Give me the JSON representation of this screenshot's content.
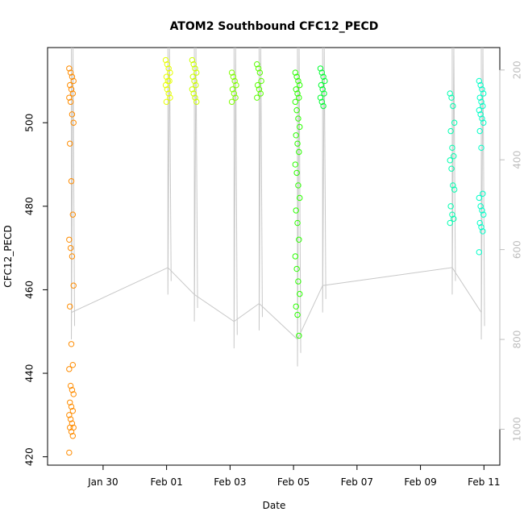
{
  "chart_data": {
    "type": "scatter",
    "title": "ATOM2 Southbound CFC12_PECD",
    "xlabel": "Date",
    "ylabel": "CFC12_PECD",
    "xlim": [
      "2017-01-28T06:00",
      "2017-02-11T12:00"
    ],
    "ylim": [
      418,
      518
    ],
    "y_ticks": [
      420,
      440,
      460,
      480,
      500
    ],
    "x_ticks": [
      {
        "date": "2017-01-30",
        "label": "Jan 30"
      },
      {
        "date": "2017-02-01",
        "label": "Feb 01"
      },
      {
        "date": "2017-02-03",
        "label": "Feb 03"
      },
      {
        "date": "2017-02-05",
        "label": "Feb 05"
      },
      {
        "date": "2017-02-07",
        "label": "Feb 07"
      },
      {
        "date": "2017-02-09",
        "label": "Feb 09"
      },
      {
        "date": "2017-02-11",
        "label": "Feb 11"
      }
    ],
    "secondary_axis": {
      "position": "right",
      "color": "#bdbdbd",
      "lim": [
        1080,
        150
      ],
      "ticks": [
        200,
        400,
        600,
        800,
        1000
      ],
      "series_color": "#c8c8c8",
      "description_color_note": "grey profile line"
    },
    "grid": false,
    "legend": "none",
    "series": [
      {
        "date": "2017-01-29T00:00",
        "color": "#ff8c00",
        "values": [
          513,
          512,
          511,
          510,
          509,
          508,
          507,
          506,
          505,
          502,
          500,
          495,
          486,
          478,
          472,
          470,
          468,
          461,
          456,
          447,
          442,
          441,
          437,
          436,
          435,
          433,
          432,
          431,
          430,
          429,
          428,
          427,
          427,
          426,
          425,
          421
        ]
      },
      {
        "date": "2017-02-01T01:00",
        "color": "#e6ff00",
        "values": [
          515,
          514,
          513,
          512,
          511,
          510,
          510,
          509,
          508,
          507,
          506,
          505
        ]
      },
      {
        "date": "2017-02-01T21:00",
        "color": "#ccff00",
        "values": [
          515,
          514,
          513,
          512,
          511,
          510,
          509,
          508,
          507,
          506,
          505
        ]
      },
      {
        "date": "2017-02-03T03:00",
        "color": "#80ff00",
        "values": [
          512,
          511,
          510,
          509,
          508,
          507,
          506,
          505
        ]
      },
      {
        "date": "2017-02-03T22:00",
        "color": "#59ff00",
        "values": [
          514,
          513,
          512,
          510,
          509,
          508,
          507,
          506
        ]
      },
      {
        "date": "2017-02-05T03:00",
        "color": "#2bff00",
        "values": [
          512,
          511,
          510,
          509,
          508,
          507,
          506,
          505,
          503,
          501,
          499,
          497,
          495,
          493,
          490,
          488,
          485,
          482,
          479,
          476,
          472,
          468,
          465,
          462,
          459,
          456,
          454,
          449
        ]
      },
      {
        "date": "2017-02-05T22:00",
        "color": "#00ff30",
        "values": [
          513,
          512,
          511,
          510,
          509,
          508,
          507,
          506,
          505,
          504
        ]
      },
      {
        "date": "2017-02-10T00:00",
        "color": "#00ffb0",
        "values": [
          507,
          506,
          504,
          500,
          498,
          494,
          492,
          491,
          489,
          485,
          484,
          480,
          478,
          477,
          476
        ]
      },
      {
        "date": "2017-02-10T22:00",
        "color": "#00ffc8",
        "values": [
          510,
          509,
          508,
          507,
          506,
          505,
          504,
          503,
          502,
          501,
          500,
          498,
          494,
          483,
          482,
          480,
          479,
          478,
          476,
          475,
          474,
          469
        ]
      }
    ]
  }
}
